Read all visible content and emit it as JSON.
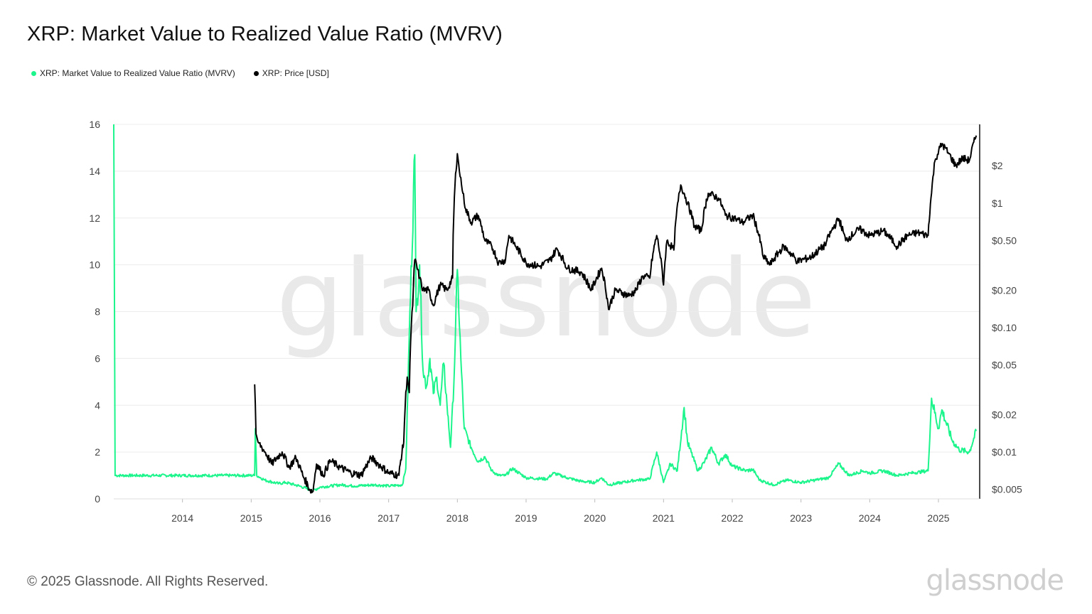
{
  "header": {
    "title": "XRP: Market Value to Realized Value Ratio (MVRV)"
  },
  "legend": [
    {
      "label": "XRP: Market Value to Realized Value Ratio (MVRV)",
      "color": "#1cf58c"
    },
    {
      "label": "XRP: Price [USD]",
      "color": "#000000"
    }
  ],
  "watermark": "glassnode",
  "footer": {
    "copyright": "© 2025 Glassnode. All Rights Reserved.",
    "brand": "glassnode"
  },
  "chart_data": {
    "type": "line",
    "title": "XRP: Market Value to Realized Value Ratio (MVRV)",
    "x_ticks": [
      "2014",
      "2015",
      "2016",
      "2017",
      "2018",
      "2019",
      "2020",
      "2021",
      "2022",
      "2023",
      "2024",
      "2025"
    ],
    "xlim": [
      2013.0,
      2025.6
    ],
    "y_left": {
      "ticks": [
        0,
        2,
        4,
        6,
        8,
        10,
        12,
        14,
        16
      ],
      "lim": [
        0,
        16
      ]
    },
    "y_right": {
      "scale": "log",
      "ticks": [
        0.005,
        0.01,
        0.02,
        0.05,
        0.1,
        0.2,
        0.5,
        1,
        2
      ],
      "tick_labels": [
        "$0.005",
        "$0.01",
        "$0.02",
        "$0.05",
        "$0.10",
        "$0.20",
        "$0.50",
        "$1",
        "$2"
      ],
      "lim": [
        0.0042,
        4.3
      ]
    },
    "grid": true,
    "legend_position": "top-left",
    "series": [
      {
        "name": "XRP: Market Value to Realized Value Ratio (MVRV)",
        "axis": "left",
        "color": "#1cf58c",
        "points": [
          [
            2013.0,
            16.0
          ],
          [
            2013.02,
            1.0
          ],
          [
            2015.05,
            1.0
          ],
          [
            2015.06,
            3.0
          ],
          [
            2015.08,
            1.0
          ],
          [
            2015.2,
            0.8
          ],
          [
            2015.4,
            0.65
          ],
          [
            2015.5,
            0.7
          ],
          [
            2015.7,
            0.55
          ],
          [
            2015.9,
            0.35
          ],
          [
            2016.0,
            0.5
          ],
          [
            2016.3,
            0.6
          ],
          [
            2016.5,
            0.55
          ],
          [
            2016.8,
            0.6
          ],
          [
            2017.0,
            0.55
          ],
          [
            2017.2,
            0.6
          ],
          [
            2017.25,
            1.3
          ],
          [
            2017.3,
            7.0
          ],
          [
            2017.38,
            14.7
          ],
          [
            2017.4,
            8.0
          ],
          [
            2017.45,
            10.0
          ],
          [
            2017.5,
            5.5
          ],
          [
            2017.55,
            4.8
          ],
          [
            2017.6,
            6.0
          ],
          [
            2017.65,
            4.5
          ],
          [
            2017.7,
            5.2
          ],
          [
            2017.75,
            4.0
          ],
          [
            2017.8,
            5.8
          ],
          [
            2017.85,
            4.0
          ],
          [
            2017.9,
            2.2
          ],
          [
            2017.95,
            5.0
          ],
          [
            2018.0,
            9.8
          ],
          [
            2018.05,
            6.0
          ],
          [
            2018.1,
            3.0
          ],
          [
            2018.2,
            2.2
          ],
          [
            2018.3,
            1.6
          ],
          [
            2018.4,
            1.8
          ],
          [
            2018.5,
            1.2
          ],
          [
            2018.6,
            1.0
          ],
          [
            2018.7,
            1.0
          ],
          [
            2018.8,
            1.3
          ],
          [
            2019.0,
            0.9
          ],
          [
            2019.3,
            0.85
          ],
          [
            2019.4,
            1.1
          ],
          [
            2019.6,
            0.9
          ],
          [
            2019.8,
            0.75
          ],
          [
            2020.0,
            0.7
          ],
          [
            2020.1,
            0.9
          ],
          [
            2020.2,
            0.6
          ],
          [
            2020.4,
            0.7
          ],
          [
            2020.6,
            0.8
          ],
          [
            2020.8,
            0.85
          ],
          [
            2020.9,
            2.0
          ],
          [
            2021.0,
            0.7
          ],
          [
            2021.1,
            1.5
          ],
          [
            2021.2,
            1.2
          ],
          [
            2021.3,
            3.9
          ],
          [
            2021.35,
            2.4
          ],
          [
            2021.5,
            1.2
          ],
          [
            2021.6,
            1.6
          ],
          [
            2021.7,
            2.2
          ],
          [
            2021.8,
            1.5
          ],
          [
            2021.9,
            1.9
          ],
          [
            2022.0,
            1.4
          ],
          [
            2022.2,
            1.2
          ],
          [
            2022.3,
            1.25
          ],
          [
            2022.4,
            0.8
          ],
          [
            2022.6,
            0.6
          ],
          [
            2022.8,
            0.8
          ],
          [
            2023.0,
            0.7
          ],
          [
            2023.2,
            0.8
          ],
          [
            2023.4,
            0.9
          ],
          [
            2023.55,
            1.5
          ],
          [
            2023.7,
            1.0
          ],
          [
            2023.9,
            1.2
          ],
          [
            2024.0,
            1.1
          ],
          [
            2024.2,
            1.2
          ],
          [
            2024.4,
            1.0
          ],
          [
            2024.6,
            1.1
          ],
          [
            2024.85,
            1.2
          ],
          [
            2024.9,
            4.3
          ],
          [
            2025.0,
            3.0
          ],
          [
            2025.05,
            3.8
          ],
          [
            2025.2,
            2.5
          ],
          [
            2025.3,
            2.1
          ],
          [
            2025.45,
            2.0
          ],
          [
            2025.55,
            2.9
          ]
        ]
      },
      {
        "name": "XRP: Price [USD]",
        "axis": "right",
        "color": "#000000",
        "points": [
          [
            2015.05,
            0.035
          ],
          [
            2015.07,
            0.014
          ],
          [
            2015.1,
            0.012
          ],
          [
            2015.2,
            0.01
          ],
          [
            2015.3,
            0.008
          ],
          [
            2015.45,
            0.01
          ],
          [
            2015.55,
            0.0075
          ],
          [
            2015.65,
            0.009
          ],
          [
            2015.75,
            0.0065
          ],
          [
            2015.85,
            0.005
          ],
          [
            2015.9,
            0.0048
          ],
          [
            2015.95,
            0.008
          ],
          [
            2016.05,
            0.0065
          ],
          [
            2016.15,
            0.0085
          ],
          [
            2016.3,
            0.0075
          ],
          [
            2016.45,
            0.0068
          ],
          [
            2016.6,
            0.0065
          ],
          [
            2016.75,
            0.009
          ],
          [
            2016.85,
            0.008
          ],
          [
            2017.0,
            0.0068
          ],
          [
            2017.15,
            0.0065
          ],
          [
            2017.22,
            0.012
          ],
          [
            2017.27,
            0.04
          ],
          [
            2017.3,
            0.03
          ],
          [
            2017.35,
            0.15
          ],
          [
            2017.38,
            0.35
          ],
          [
            2017.45,
            0.25
          ],
          [
            2017.5,
            0.2
          ],
          [
            2017.58,
            0.2
          ],
          [
            2017.65,
            0.15
          ],
          [
            2017.75,
            0.22
          ],
          [
            2017.85,
            0.2
          ],
          [
            2017.93,
            0.25
          ],
          [
            2018.0,
            2.5
          ],
          [
            2018.03,
            1.8
          ],
          [
            2018.08,
            1.2
          ],
          [
            2018.12,
            0.9
          ],
          [
            2018.2,
            0.7
          ],
          [
            2018.3,
            0.8
          ],
          [
            2018.4,
            0.5
          ],
          [
            2018.5,
            0.45
          ],
          [
            2018.6,
            0.33
          ],
          [
            2018.7,
            0.35
          ],
          [
            2018.75,
            0.55
          ],
          [
            2018.85,
            0.45
          ],
          [
            2019.0,
            0.33
          ],
          [
            2019.2,
            0.31
          ],
          [
            2019.35,
            0.35
          ],
          [
            2019.45,
            0.43
          ],
          [
            2019.6,
            0.3
          ],
          [
            2019.8,
            0.28
          ],
          [
            2019.95,
            0.2
          ],
          [
            2020.1,
            0.3
          ],
          [
            2020.2,
            0.14
          ],
          [
            2020.3,
            0.2
          ],
          [
            2020.5,
            0.18
          ],
          [
            2020.6,
            0.2
          ],
          [
            2020.7,
            0.26
          ],
          [
            2020.8,
            0.25
          ],
          [
            2020.9,
            0.55
          ],
          [
            2021.0,
            0.22
          ],
          [
            2021.05,
            0.5
          ],
          [
            2021.15,
            0.42
          ],
          [
            2021.25,
            1.4
          ],
          [
            2021.35,
            1.0
          ],
          [
            2021.45,
            0.65
          ],
          [
            2021.55,
            0.6
          ],
          [
            2021.65,
            1.2
          ],
          [
            2021.8,
            1.1
          ],
          [
            2021.9,
            0.8
          ],
          [
            2022.05,
            0.75
          ],
          [
            2022.15,
            0.7
          ],
          [
            2022.3,
            0.8
          ],
          [
            2022.45,
            0.37
          ],
          [
            2022.55,
            0.32
          ],
          [
            2022.75,
            0.45
          ],
          [
            2022.95,
            0.34
          ],
          [
            2023.15,
            0.37
          ],
          [
            2023.35,
            0.46
          ],
          [
            2023.55,
            0.75
          ],
          [
            2023.65,
            0.5
          ],
          [
            2023.85,
            0.62
          ],
          [
            2024.0,
            0.55
          ],
          [
            2024.2,
            0.6
          ],
          [
            2024.4,
            0.45
          ],
          [
            2024.55,
            0.55
          ],
          [
            2024.7,
            0.58
          ],
          [
            2024.85,
            0.55
          ],
          [
            2024.9,
            1.2
          ],
          [
            2024.95,
            2.2
          ],
          [
            2025.05,
            3.0
          ],
          [
            2025.15,
            2.5
          ],
          [
            2025.25,
            2.0
          ],
          [
            2025.35,
            2.3
          ],
          [
            2025.45,
            2.2
          ],
          [
            2025.55,
            3.5
          ]
        ]
      }
    ]
  }
}
